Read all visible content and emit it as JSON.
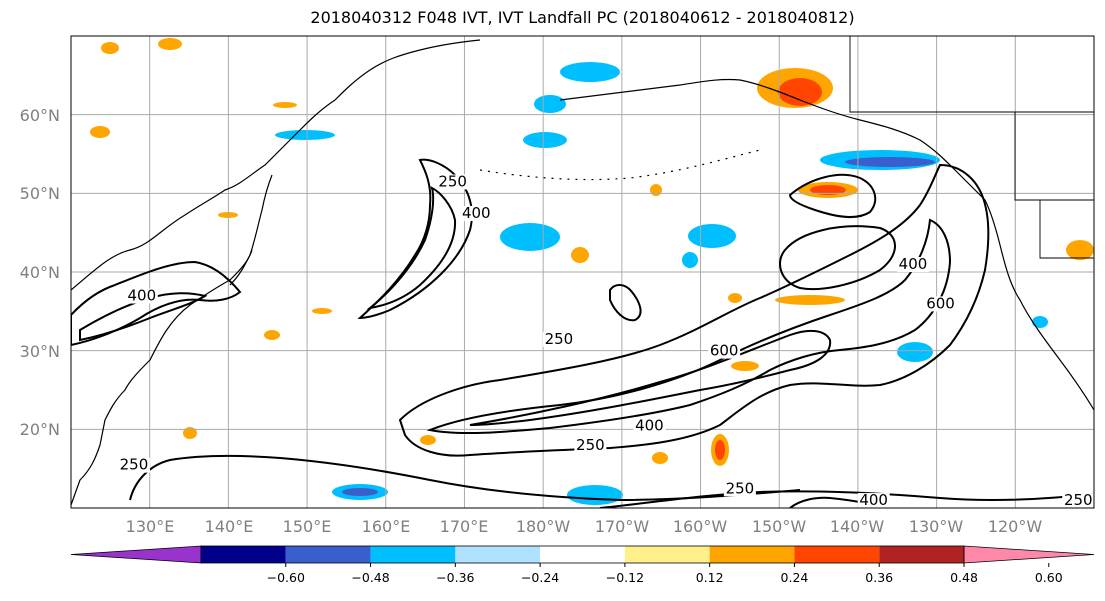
{
  "title": "2018040312 F048 IVT, IVT Landfall PC (2018040612 - 2018040812)",
  "latitude_labels": [
    "60°N",
    "50°N",
    "40°N",
    "30°N",
    "20°N"
  ],
  "longitude_labels": [
    "130°E",
    "140°E",
    "150°E",
    "160°E",
    "170°E",
    "180°W",
    "170°W",
    "160°W",
    "150°W",
    "140°W",
    "130°W",
    "120°W"
  ],
  "colorbar": {
    "colors": [
      "#9933cc",
      "#00008b",
      "#3a5fcd",
      "#00bfff",
      "#b0e2ff",
      "#ffffff",
      "#fff08c",
      "#ffa500",
      "#ff4500",
      "#b22222",
      "#ff88aa"
    ],
    "tick_labels": [
      "−0.60",
      "−0.48",
      "−0.36",
      "−0.24",
      "−0.12",
      "0.12",
      "0.24",
      "0.36",
      "0.48",
      "0.60"
    ]
  },
  "contour_labels": [
    {
      "text": "250",
      "lon": 168.5,
      "lat": 51
    },
    {
      "text": "400",
      "lon": 171.5,
      "lat": 47
    },
    {
      "text": "400",
      "lon": 129,
      "lat": 36.5
    },
    {
      "text": "250",
      "lon": 182,
      "lat": 31
    },
    {
      "text": "600",
      "lon": 203,
      "lat": 29.5
    },
    {
      "text": "400",
      "lon": 227,
      "lat": 40.5
    },
    {
      "text": "600",
      "lon": 230.5,
      "lat": 35.5
    },
    {
      "text": "400",
      "lon": 193.5,
      "lat": 20
    },
    {
      "text": "250",
      "lon": 186,
      "lat": 17.5
    },
    {
      "text": "250",
      "lon": 128,
      "lat": 15
    },
    {
      "text": "250",
      "lon": 205,
      "lat": 12
    },
    {
      "text": "400",
      "lon": 222,
      "lat": 10.5
    },
    {
      "text": "250",
      "lon": 248,
      "lat": 10.5
    }
  ]
}
